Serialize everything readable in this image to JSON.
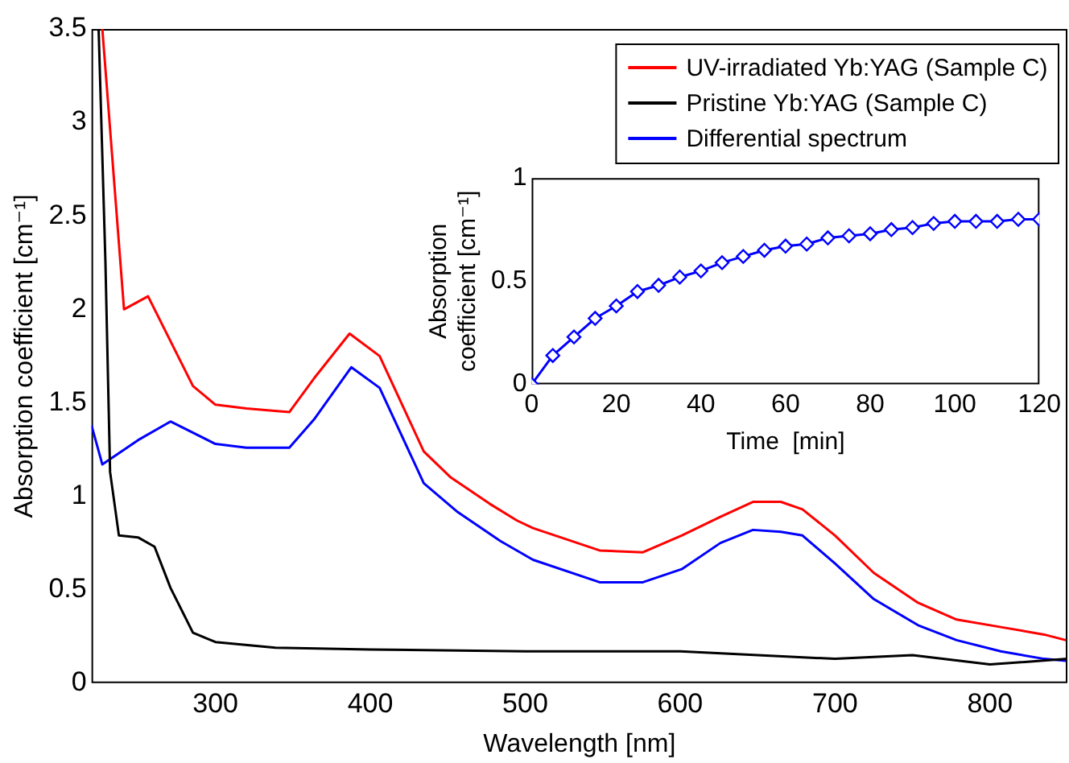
{
  "chart_data": [
    {
      "type": "line",
      "xlabel": "Wavelength [nm]",
      "ylabel": "Absorption coefficient [cm⁻¹]",
      "xlim": [
        220,
        850
      ],
      "ylim": [
        0,
        3.5
      ],
      "xticks": [
        300,
        400,
        500,
        600,
        700,
        800
      ],
      "yticks": [
        0,
        0.5,
        1,
        1.5,
        2,
        2.5,
        3,
        3.5
      ],
      "grid": false,
      "legend": "top right",
      "marker": "none",
      "line_style": "solid",
      "series": [
        {
          "name": "UV-irradiated Yb:YAG (Sample C)",
          "color": "#ff0000",
          "x": [
            227,
            241,
            256.5,
            285.5,
            300,
            320,
            347.7,
            363.6,
            386.6,
            406,
            434.5,
            452,
            477,
            494.7,
            505,
            548,
            576,
            601,
            626,
            647,
            665,
            679,
            700,
            725,
            753.6,
            778.5,
            807,
            835,
            849
          ],
          "values": [
            3.5,
            2.0,
            2.07,
            1.59,
            1.49,
            1.47,
            1.45,
            1.63,
            1.87,
            1.75,
            1.24,
            1.1,
            0.96,
            0.87,
            0.83,
            0.71,
            0.7,
            0.79,
            0.89,
            0.97,
            0.97,
            0.93,
            0.79,
            0.59,
            0.43,
            0.34,
            0.3,
            0.26,
            0.23
          ]
        },
        {
          "name": "Pristine Yb:YAG (Sample C)",
          "color": "#000000",
          "x": [
            224.6,
            229,
            232,
            237.7,
            250,
            260.7,
            271,
            285.5,
            300,
            338.7,
            400,
            500,
            600,
            700,
            750,
            800,
            850
          ],
          "values": [
            3.5,
            2.25,
            1.13,
            0.79,
            0.78,
            0.73,
            0.51,
            0.27,
            0.22,
            0.19,
            0.18,
            0.17,
            0.17,
            0.13,
            0.15,
            0.1,
            0.13
          ]
        },
        {
          "name": "Differential spectrum",
          "color": "#0000ff",
          "x": [
            220,
            227,
            250,
            271,
            300,
            320,
            347.7,
            363.6,
            387.7,
            406,
            434.5,
            455.7,
            484,
            505,
            548,
            576,
            601,
            626,
            647,
            665,
            679,
            700,
            725,
            753.6,
            778.5,
            807,
            835,
            849
          ],
          "values": [
            1.38,
            1.17,
            1.3,
            1.4,
            1.28,
            1.26,
            1.26,
            1.41,
            1.69,
            1.58,
            1.07,
            0.92,
            0.76,
            0.66,
            0.54,
            0.54,
            0.61,
            0.75,
            0.82,
            0.81,
            0.79,
            0.64,
            0.45,
            0.31,
            0.23,
            0.17,
            0.13,
            0.12
          ]
        }
      ]
    },
    {
      "type": "line",
      "xlabel": "Time  [min]",
      "ylabel": "Absorption coefficient [cm⁻¹]",
      "xlim": [
        0,
        120
      ],
      "ylim": [
        0,
        1
      ],
      "xticks": [
        0,
        20,
        40,
        60,
        80,
        100,
        120
      ],
      "yticks": [
        0,
        0.5,
        1
      ],
      "grid": false,
      "marker": "diamond",
      "line_style": "solid",
      "series": [
        {
          "color": "#0000ff",
          "x": [
            0,
            5,
            10,
            15,
            20,
            25,
            30,
            35,
            40,
            45,
            50,
            55,
            60,
            65,
            70,
            75,
            80,
            85,
            90,
            95,
            100,
            105,
            110,
            115,
            120
          ],
          "values": [
            0,
            0.14,
            0.23,
            0.32,
            0.38,
            0.45,
            0.48,
            0.52,
            0.55,
            0.59,
            0.62,
            0.65,
            0.67,
            0.68,
            0.71,
            0.72,
            0.73,
            0.75,
            0.76,
            0.78,
            0.79,
            0.79,
            0.79,
            0.8,
            0.8
          ]
        }
      ]
    }
  ]
}
